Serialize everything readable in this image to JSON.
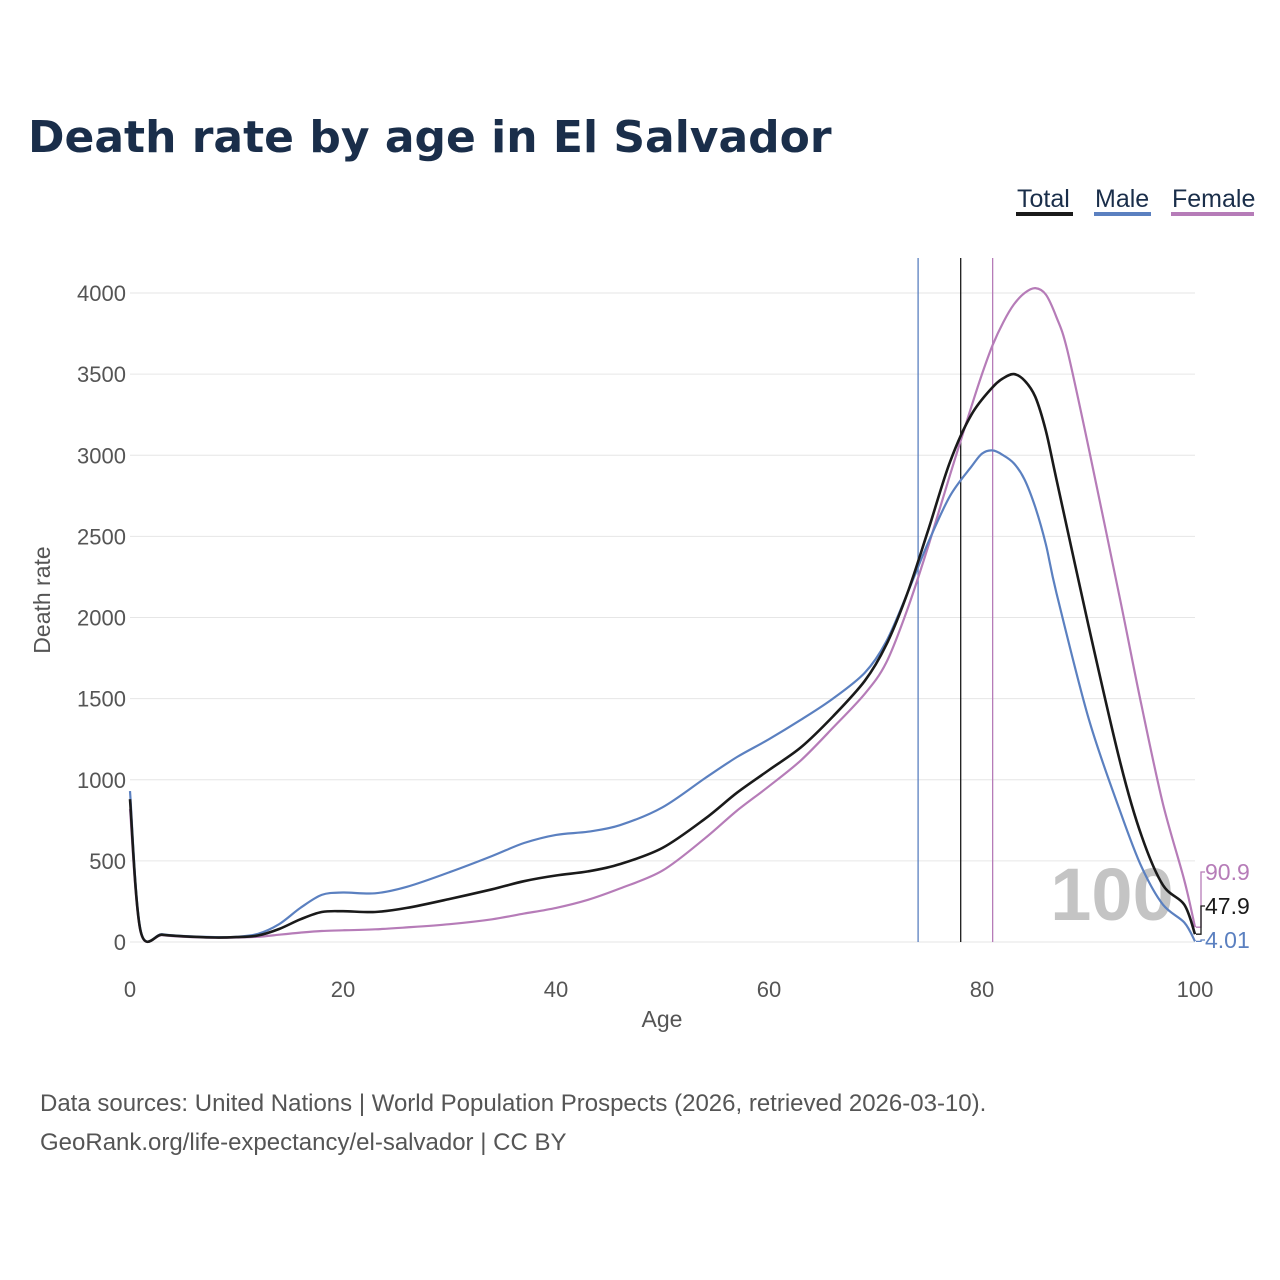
{
  "chart_data": {
    "type": "line",
    "title": "Death rate by age in El Salvador",
    "xlabel": "Age",
    "ylabel": "Death rate",
    "xlim": [
      0,
      100
    ],
    "ylim": [
      0,
      4000
    ],
    "x_ticks": [
      "0",
      "20",
      "40",
      "60",
      "80",
      "100"
    ],
    "y_ticks": [
      "0",
      "500",
      "1000",
      "1500",
      "2000",
      "2500",
      "3000",
      "3500",
      "4000"
    ],
    "legend": [
      "Total",
      "Male",
      "Female"
    ],
    "legend_position": "top-right",
    "grid": "horizontal",
    "highlight_age": "100",
    "colors": {
      "total": "#1a1a1a",
      "male": "#5b80c0",
      "female": "#b67cb8",
      "title": "#1a2e4a"
    },
    "series": [
      {
        "name": "Total",
        "x": [
          0,
          1,
          3,
          5,
          8,
          10,
          12,
          14,
          16,
          18,
          20,
          23,
          26,
          30,
          34,
          37,
          40,
          43,
          46,
          50,
          54,
          57,
          60,
          63,
          66,
          69,
          71,
          73,
          75,
          77,
          79,
          81,
          82,
          83,
          84,
          85,
          86,
          87,
          90,
          93,
          95,
          97,
          99,
          100
        ],
        "values": [
          880,
          65,
          45,
          35,
          28,
          30,
          40,
          80,
          140,
          185,
          190,
          185,
          210,
          265,
          325,
          375,
          410,
          435,
          480,
          580,
          760,
          920,
          1060,
          1200,
          1390,
          1610,
          1830,
          2150,
          2550,
          2960,
          3250,
          3420,
          3475,
          3500,
          3460,
          3360,
          3150,
          2850,
          1950,
          1100,
          650,
          350,
          230,
          48
        ]
      },
      {
        "name": "Male",
        "x": [
          0,
          1,
          3,
          5,
          8,
          10,
          12,
          14,
          16,
          18,
          20,
          23,
          26,
          30,
          34,
          37,
          40,
          43,
          46,
          50,
          54,
          57,
          60,
          63,
          66,
          69,
          71,
          73,
          75,
          77,
          79,
          80,
          81,
          82,
          83,
          84,
          85,
          86,
          87,
          90,
          93,
          95,
          97,
          99,
          100
        ],
        "values": [
          930,
          70,
          48,
          37,
          30,
          32,
          50,
          110,
          210,
          290,
          305,
          300,
          340,
          430,
          530,
          610,
          660,
          680,
          720,
          830,
          1010,
          1140,
          1250,
          1370,
          1500,
          1660,
          1850,
          2150,
          2470,
          2750,
          2930,
          3010,
          3030,
          3000,
          2950,
          2850,
          2680,
          2450,
          2150,
          1380,
          800,
          460,
          230,
          120,
          4
        ]
      },
      {
        "name": "Female",
        "x": [
          0,
          1,
          3,
          5,
          8,
          10,
          12,
          14,
          16,
          18,
          20,
          23,
          26,
          30,
          34,
          37,
          40,
          43,
          46,
          50,
          54,
          57,
          60,
          63,
          66,
          69,
          71,
          73,
          75,
          77,
          79,
          80,
          81,
          82,
          83,
          84,
          85,
          86,
          87,
          88,
          90,
          93,
          95,
          97,
          99,
          100
        ],
        "values": [
          820,
          60,
          42,
          32,
          26,
          28,
          32,
          45,
          58,
          68,
          72,
          78,
          90,
          110,
          140,
          175,
          210,
          260,
          330,
          440,
          640,
          810,
          960,
          1120,
          1320,
          1530,
          1720,
          2050,
          2450,
          2880,
          3300,
          3500,
          3680,
          3820,
          3930,
          4000,
          4030,
          3990,
          3850,
          3650,
          3050,
          2100,
          1450,
          850,
          380,
          91
        ]
      }
    ],
    "reference_lines": [
      {
        "name": "Male",
        "age": 74
      },
      {
        "name": "Total",
        "age": 78
      },
      {
        "name": "Female",
        "age": 81
      }
    ],
    "end_labels": [
      {
        "name": "Female",
        "text": "90.9"
      },
      {
        "name": "Total",
        "text": "47.9"
      },
      {
        "name": "Male",
        "text": "4.01"
      }
    ]
  },
  "footer": {
    "source_line": "Data sources: United Nations | World Population Prospects (2026, retrieved 2026-03-10).",
    "credit_line": "GeoRank.org/life-expectancy/el-salvador | CC BY"
  }
}
